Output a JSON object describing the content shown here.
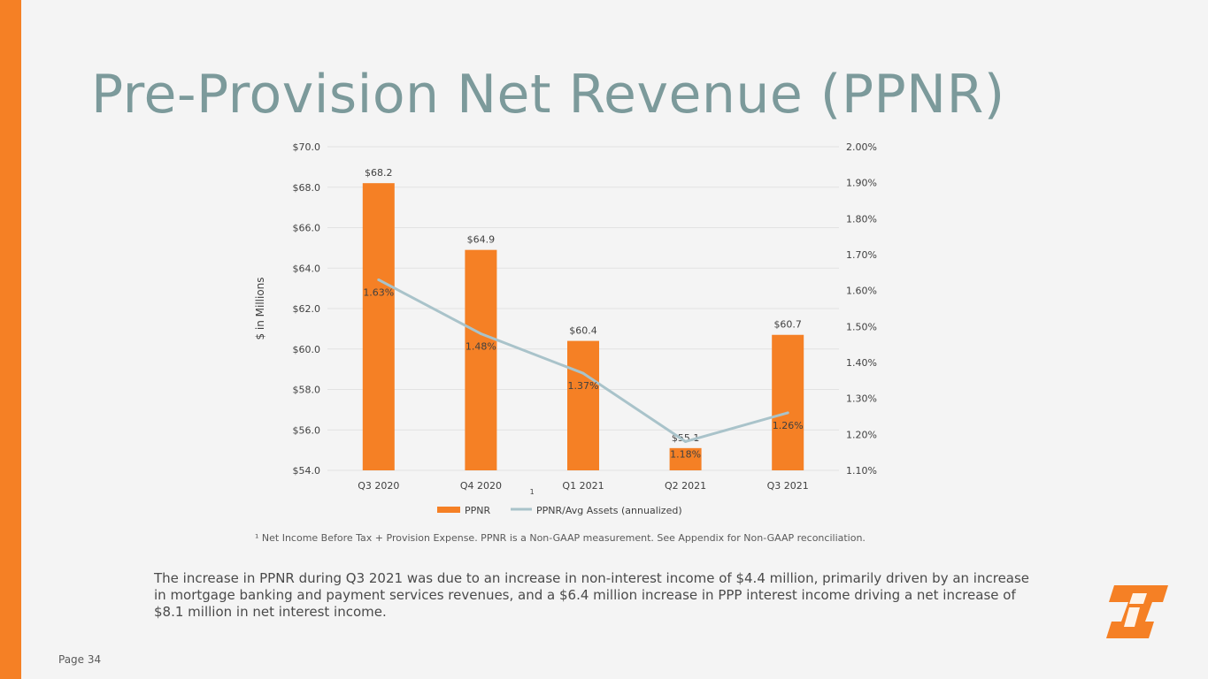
{
  "slide": {
    "title": "Pre-Provision Net Revenue (PPNR)",
    "footnote": "¹ Net Income Before Tax + Provision Expense. PPNR is a Non-GAAP measurement. See Appendix for Non-GAAP reconciliation.",
    "body": "The increase in PPNR during Q3 2021 was due to an increase in non-interest income of $4.4 million, primarily driven by an increase in mortgage banking and payment services revenues, and a $6.4 million increase in PPP interest income driving a net increase of $8.1 million in net interest income.",
    "page": "Page 34"
  },
  "colors": {
    "accent": "#f58025",
    "title": "#7c9a9b",
    "bar": "#f58025",
    "line": "#a9c3ca",
    "grid": "#e2e2e2",
    "text": "#404040"
  },
  "chart_data": {
    "type": "bar",
    "categories": [
      "Q3 2020",
      "Q4 2020",
      "Q1 2021",
      "Q2 2021",
      "Q3 2021"
    ],
    "category_marker": "1",
    "series": [
      {
        "name": "PPNR",
        "kind": "bar",
        "axis": "left",
        "values": [
          68.2,
          64.9,
          60.4,
          55.1,
          60.7
        ],
        "labels": [
          "$68.2",
          "$64.9",
          "$60.4",
          "$55.1",
          "$60.7"
        ]
      },
      {
        "name": "PPNR/Avg Assets (annualized)",
        "kind": "line",
        "axis": "right",
        "values": [
          1.63,
          1.48,
          1.37,
          1.18,
          1.26
        ],
        "labels": [
          "1.63%",
          "1.48%",
          "1.37%",
          "1.18%",
          "1.26%"
        ]
      }
    ],
    "ylabel": "$ in Millions",
    "ylim": [
      54,
      70
    ],
    "yticks": [
      "$54.0",
      "$56.0",
      "$58.0",
      "$60.0",
      "$62.0",
      "$64.0",
      "$66.0",
      "$68.0",
      "$70.0"
    ],
    "y2lim": [
      1.1,
      2.0
    ],
    "y2ticks": [
      "1.10%",
      "1.20%",
      "1.30%",
      "1.40%",
      "1.50%",
      "1.60%",
      "1.70%",
      "1.80%",
      "1.90%",
      "2.00%"
    ],
    "legend": [
      "PPNR",
      "PPNR/Avg Assets (annualized)"
    ],
    "legend_position": "bottom",
    "grid": true
  }
}
